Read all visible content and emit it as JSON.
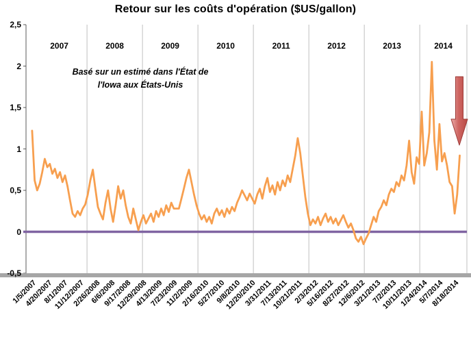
{
  "chart_data": {
    "type": "line",
    "title": "Retour sur les coûts d'opération ($US/gallon)",
    "annotation": {
      "line1": "Basé sur un estimé dans l'État de",
      "line2": "l'Iowa aux États-Unis"
    },
    "unit": "$US/gallon",
    "xlim": [
      2006.9,
      2014.85
    ],
    "ylim": [
      -0.5,
      2.5
    ],
    "grid": "vertical-year-lines",
    "legend": "none",
    "y_ticks": {
      "values": [
        -0.5,
        0,
        0.5,
        1,
        1.5,
        2,
        2.5
      ],
      "labels": [
        "-0,5",
        "0",
        "0,5",
        "1",
        "1,5",
        "2",
        "2,5"
      ]
    },
    "year_labels": [
      "2007",
      "2008",
      "2009",
      "2010",
      "2011",
      "2012",
      "2013",
      "2014"
    ],
    "year_gridlines": [
      2008,
      2009,
      2010,
      2011,
      2012,
      2013,
      2014,
      2014.85
    ],
    "x_tick_labels": [
      "1/5/2007",
      "4/20/2007",
      "8/1/2007",
      "11/12/2007",
      "2/26/2008",
      "6/6/2008",
      "9/17/2008",
      "12/29/2008",
      "4/13/2009",
      "7/23/2009",
      "11/2/2009",
      "2/16/2010",
      "5/27/2010",
      "9/8/2010",
      "12/20/2010",
      "3/31/2011",
      "7/13/2011",
      "10/21/2011",
      "2/3/2012",
      "5/16/2012",
      "8/27/2012",
      "12/6/2012",
      "3/21/2013",
      "7/2/2013",
      "10/11/2013",
      "1/24/2014",
      "5/7/2014",
      "8/18/2014"
    ],
    "series": {
      "t_start": 2007.01,
      "t_end": 2014.72,
      "values": [
        1.22,
        0.62,
        0.5,
        0.58,
        0.72,
        0.88,
        0.78,
        0.82,
        0.7,
        0.76,
        0.65,
        0.72,
        0.6,
        0.68,
        0.55,
        0.38,
        0.22,
        0.18,
        0.25,
        0.2,
        0.28,
        0.33,
        0.45,
        0.62,
        0.75,
        0.52,
        0.3,
        0.22,
        0.15,
        0.35,
        0.5,
        0.28,
        0.12,
        0.32,
        0.55,
        0.4,
        0.5,
        0.32,
        0.18,
        0.1,
        0.28,
        0.15,
        0.02,
        0.12,
        0.2,
        0.1,
        0.16,
        0.22,
        0.12,
        0.25,
        0.18,
        0.28,
        0.2,
        0.32,
        0.24,
        0.35,
        0.28,
        0.28,
        0.28,
        0.4,
        0.52,
        0.65,
        0.75,
        0.6,
        0.45,
        0.32,
        0.22,
        0.15,
        0.2,
        0.12,
        0.18,
        0.1,
        0.22,
        0.28,
        0.2,
        0.26,
        0.18,
        0.28,
        0.22,
        0.3,
        0.25,
        0.35,
        0.42,
        0.5,
        0.44,
        0.38,
        0.46,
        0.4,
        0.34,
        0.45,
        0.52,
        0.4,
        0.55,
        0.65,
        0.48,
        0.56,
        0.45,
        0.6,
        0.5,
        0.62,
        0.55,
        0.68,
        0.6,
        0.76,
        0.92,
        1.13,
        0.95,
        0.68,
        0.42,
        0.22,
        0.08,
        0.15,
        0.1,
        0.18,
        0.08,
        0.16,
        0.22,
        0.12,
        0.18,
        0.1,
        0.16,
        0.08,
        0.14,
        0.2,
        0.12,
        0.05,
        0.1,
        0.02,
        -0.08,
        -0.12,
        -0.06,
        -0.15,
        -0.08,
        -0.02,
        0.08,
        0.18,
        0.12,
        0.25,
        0.3,
        0.38,
        0.32,
        0.45,
        0.52,
        0.48,
        0.6,
        0.55,
        0.68,
        0.62,
        0.8,
        1.1,
        0.72,
        0.58,
        0.9,
        0.82,
        1.45,
        0.8,
        0.95,
        1.2,
        2.05,
        1.1,
        0.75,
        1.3,
        0.85,
        0.95,
        0.8,
        0.6,
        0.55,
        0.22,
        0.45,
        0.92
      ]
    },
    "trend_arrow": {
      "direction": "down"
    },
    "colors": {
      "line": "#F79F4F",
      "zero_line": "#8064A2",
      "grid": "#BFBFBF",
      "axis": "#595959",
      "baseline": "#A6A6A6",
      "arrow": "#C0504D",
      "text": "#000000"
    }
  }
}
